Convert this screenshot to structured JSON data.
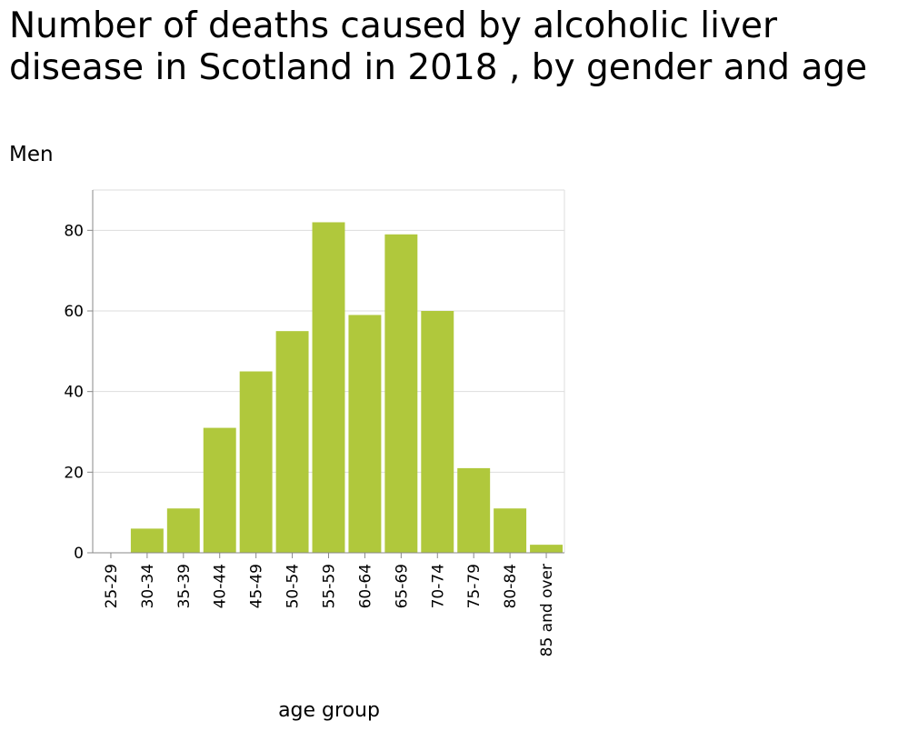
{
  "chart_data": {
    "type": "bar",
    "title": "Number of deaths caused by alcoholic liver disease in Scotland in 2018 , by gender and age",
    "subtitle": "Men",
    "xlabel": "age group",
    "ylabel": "",
    "categories": [
      "25-29",
      "30-34",
      "35-39",
      "40-44",
      "45-49",
      "50-54",
      "55-59",
      "60-64",
      "65-69",
      "70-74",
      "75-79",
      "80-84",
      "85 and over"
    ],
    "values": [
      0,
      6,
      11,
      31,
      45,
      55,
      82,
      59,
      79,
      60,
      21,
      11,
      2
    ],
    "ylim": [
      0,
      90
    ],
    "yticks": [
      0,
      20,
      40,
      60,
      80
    ],
    "grid": true,
    "legend": "none",
    "bar_color": "#b0c83c"
  }
}
